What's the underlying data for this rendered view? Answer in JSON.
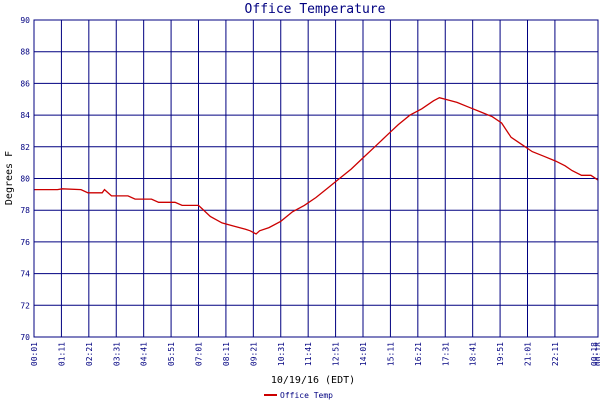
{
  "chart_data": {
    "type": "line",
    "title": "Office Temperature",
    "xlabel": "10/19/16 (EDT)",
    "ylabel": "Degrees F",
    "ylim": [
      70,
      90
    ],
    "yticks": [
      70,
      72,
      74,
      76,
      78,
      80,
      82,
      84,
      86,
      88,
      90
    ],
    "xlim": [
      0,
      24
    ],
    "xtick_labels": [
      "00:01",
      "01:11",
      "02:21",
      "03:31",
      "04:41",
      "05:51",
      "07:01",
      "08:11",
      "09:21",
      "10:31",
      "11:41",
      "12:51",
      "14:01",
      "15:11",
      "16:21",
      "17:31",
      "18:41",
      "19:51",
      "21:01",
      "22:11",
      "00:18",
      "00:18"
    ],
    "grid": true,
    "legend_position": "bottom-left",
    "colors": {
      "line": "#cc0000",
      "grid": "#000080",
      "frame": "#000080"
    },
    "series": [
      {
        "name": "Office Temp",
        "x": [
          0.0,
          1.0,
          1.2,
          2.0,
          2.3,
          2.9,
          3.0,
          3.3,
          4.0,
          4.3,
          5.0,
          5.3,
          6.0,
          6.3,
          7.0,
          7.15,
          7.5,
          8.0,
          8.5,
          9.0,
          9.2,
          9.45,
          9.6,
          10.0,
          10.5,
          11.0,
          11.5,
          12.0,
          12.5,
          13.0,
          13.5,
          14.0,
          14.5,
          15.0,
          15.5,
          16.0,
          16.5,
          17.0,
          17.25,
          17.5,
          18.0,
          18.5,
          19.0,
          19.5,
          19.9,
          20.3,
          20.8,
          21.2,
          21.7,
          22.2,
          22.6,
          22.9,
          23.3,
          23.7,
          24.0
        ],
        "y": [
          79.3,
          79.3,
          79.35,
          79.3,
          79.1,
          79.1,
          79.3,
          78.9,
          78.9,
          78.7,
          78.7,
          78.5,
          78.5,
          78.3,
          78.3,
          78.1,
          77.6,
          77.2,
          77.0,
          76.8,
          76.7,
          76.5,
          76.7,
          76.9,
          77.3,
          77.9,
          78.3,
          78.8,
          79.4,
          80.0,
          80.6,
          81.3,
          82.0,
          82.7,
          83.4,
          84.0,
          84.4,
          84.9,
          85.1,
          85.0,
          84.8,
          84.5,
          84.2,
          83.9,
          83.5,
          82.6,
          82.1,
          81.7,
          81.4,
          81.1,
          80.8,
          80.5,
          80.2,
          80.2,
          79.9
        ]
      }
    ]
  }
}
